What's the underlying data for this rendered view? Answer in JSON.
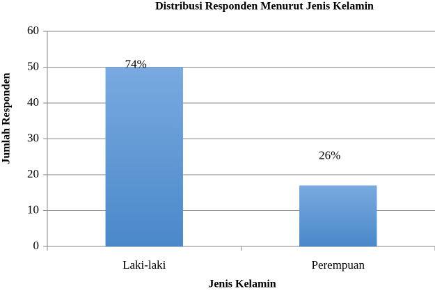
{
  "chart_data": {
    "type": "bar",
    "title": "Distribusi Responden Menurut Jenis Kelamin",
    "x_label": "Jenis Kelamin",
    "y_label": "Jumlah Responden",
    "categories": [
      "Laki-laki",
      "Perempuan"
    ],
    "values": [
      50,
      17
    ],
    "annotations": [
      "74%",
      "26%"
    ],
    "color": "#5b9bd5",
    "ylim": [
      0,
      60
    ],
    "yticks": [
      0,
      10,
      20,
      30,
      40,
      50,
      60
    ],
    "grid": true
  }
}
